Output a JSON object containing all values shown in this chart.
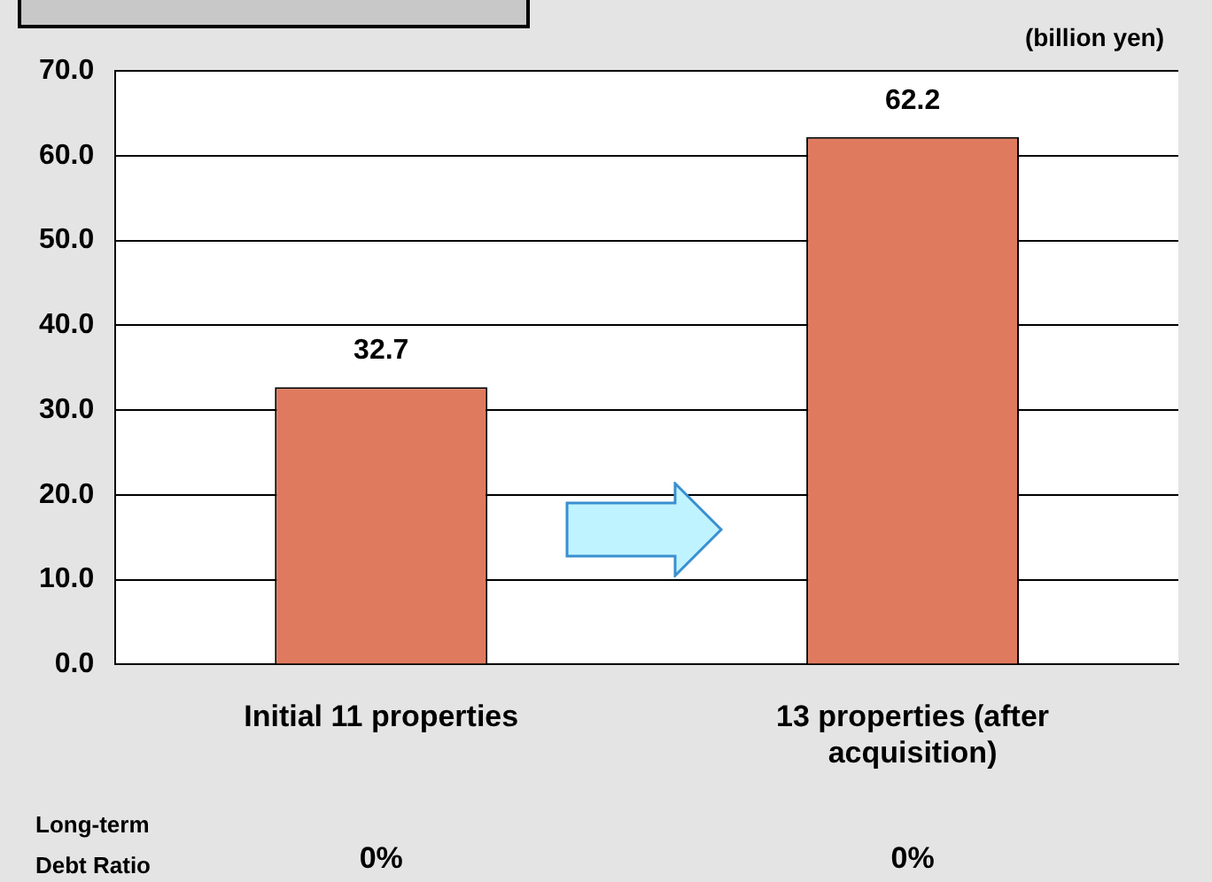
{
  "chart_data": {
    "type": "bar",
    "categories": [
      "Initial 11 properties",
      "13 properties (after acquisition)"
    ],
    "values": [
      32.7,
      62.2
    ],
    "color": "#e07a5f",
    "ylim": [
      0,
      70
    ],
    "yticks": [
      {
        "value": 0,
        "label": "0.0"
      },
      {
        "value": 10,
        "label": "10.0"
      },
      {
        "value": 20,
        "label": "20.0"
      },
      {
        "value": 30,
        "label": "30.0"
      },
      {
        "value": 40,
        "label": "40.0"
      },
      {
        "value": 50,
        "label": "50.0"
      },
      {
        "value": 60,
        "label": "60.0"
      },
      {
        "value": 70,
        "label": "70.0"
      }
    ],
    "grid": "y",
    "data_labels": true,
    "annotations": [
      "(billion yen)",
      "Long-term Debt Ratio",
      "0%",
      "0%"
    ]
  }
}
